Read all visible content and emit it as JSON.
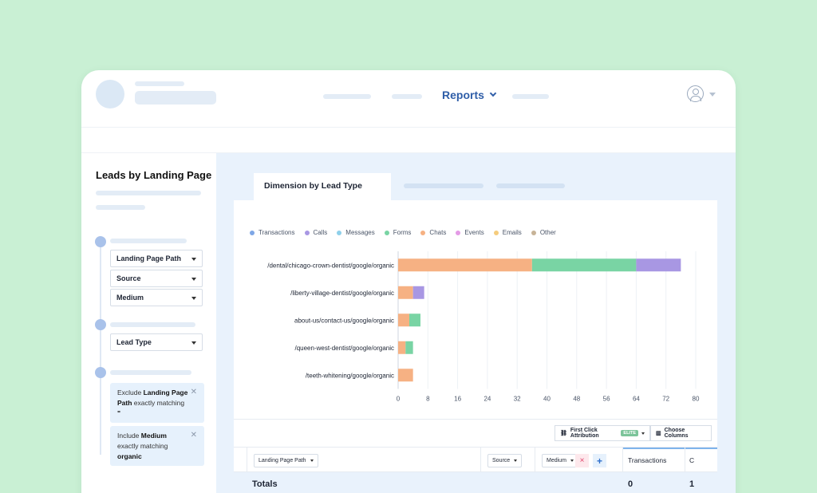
{
  "header": {
    "nav_label": "Reports"
  },
  "sidebar": {
    "title": "Leads by Landing Page",
    "dimensions_group1": [
      "Landing Page Path",
      "Source",
      "Medium"
    ],
    "dimensions_group2": [
      "Lead Type"
    ],
    "filters": [
      {
        "prefix": "Exclude ",
        "field": "Landing Page Path",
        "middle": " exactly matching",
        "value": "\""
      },
      {
        "prefix": "Include ",
        "field": "Medium",
        "middle": " exactly matching",
        "value": "organic"
      }
    ]
  },
  "main": {
    "active_tab": "Dimension by Lead Type"
  },
  "chart_data": {
    "type": "bar",
    "orientation": "horizontal",
    "stacked": true,
    "legend": [
      {
        "name": "Transactions",
        "color": "#7fa7e6"
      },
      {
        "name": "Calls",
        "color": "#a897e3"
      },
      {
        "name": "Messages",
        "color": "#8fd0ea"
      },
      {
        "name": "Forms",
        "color": "#79d4a4"
      },
      {
        "name": "Chats",
        "color": "#f6b183"
      },
      {
        "name": "Events",
        "color": "#e49be6"
      },
      {
        "name": "Emails",
        "color": "#f5cc7d"
      },
      {
        "name": "Other",
        "color": "#c7b397"
      }
    ],
    "categories": [
      "/dental/chicago-crown-dentist/google/organic",
      "/liberty-village-dentist/google/organic",
      "about-us/contact-us/google/organic",
      "/queen-west-dentist/google/organic",
      "/teeth-whitening/google/organic"
    ],
    "series": [
      {
        "name": "Chats",
        "color": "#f6b183",
        "values": [
          36,
          4,
          3,
          2,
          4
        ]
      },
      {
        "name": "Forms",
        "color": "#79d4a4",
        "values": [
          28,
          0,
          3,
          2,
          0
        ]
      },
      {
        "name": "Calls",
        "color": "#a897e3",
        "values": [
          12,
          3,
          0,
          0,
          0
        ]
      }
    ],
    "xticks": [
      0,
      8,
      16,
      24,
      32,
      40,
      48,
      56,
      64,
      72,
      80
    ],
    "xlim": [
      0,
      80
    ]
  },
  "toolbar": {
    "attribution_label": "First Click Attribution",
    "attribution_badge": "ELITE",
    "columns_label": "Choose Columns"
  },
  "table": {
    "col_landing": "Landing Page Path",
    "col_source": "Source",
    "col_medium": "Medium",
    "remove_symbol": "×",
    "add_symbol": "+",
    "col_transactions": "Transactions",
    "col_next": "C",
    "totals_label": "Totals",
    "totals_transactions": "0",
    "totals_next": "1"
  }
}
